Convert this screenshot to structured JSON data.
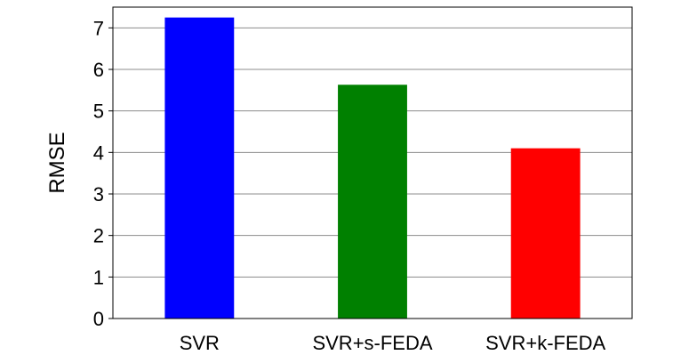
{
  "chart_data": {
    "type": "bar",
    "title": "",
    "xlabel": "",
    "ylabel": "RMSE",
    "categories": [
      "SVR",
      "SVR+s-FEDA",
      "SVR+k-FEDA"
    ],
    "values": [
      7.25,
      5.63,
      4.1
    ],
    "colors": [
      "#0000ff",
      "#008000",
      "#ff0000"
    ],
    "ylim": [
      0,
      7.5
    ],
    "yticks": [
      "0",
      "1",
      "2",
      "3",
      "4",
      "5",
      "6",
      "7"
    ],
    "grid": "horizontal",
    "legend": "none"
  }
}
